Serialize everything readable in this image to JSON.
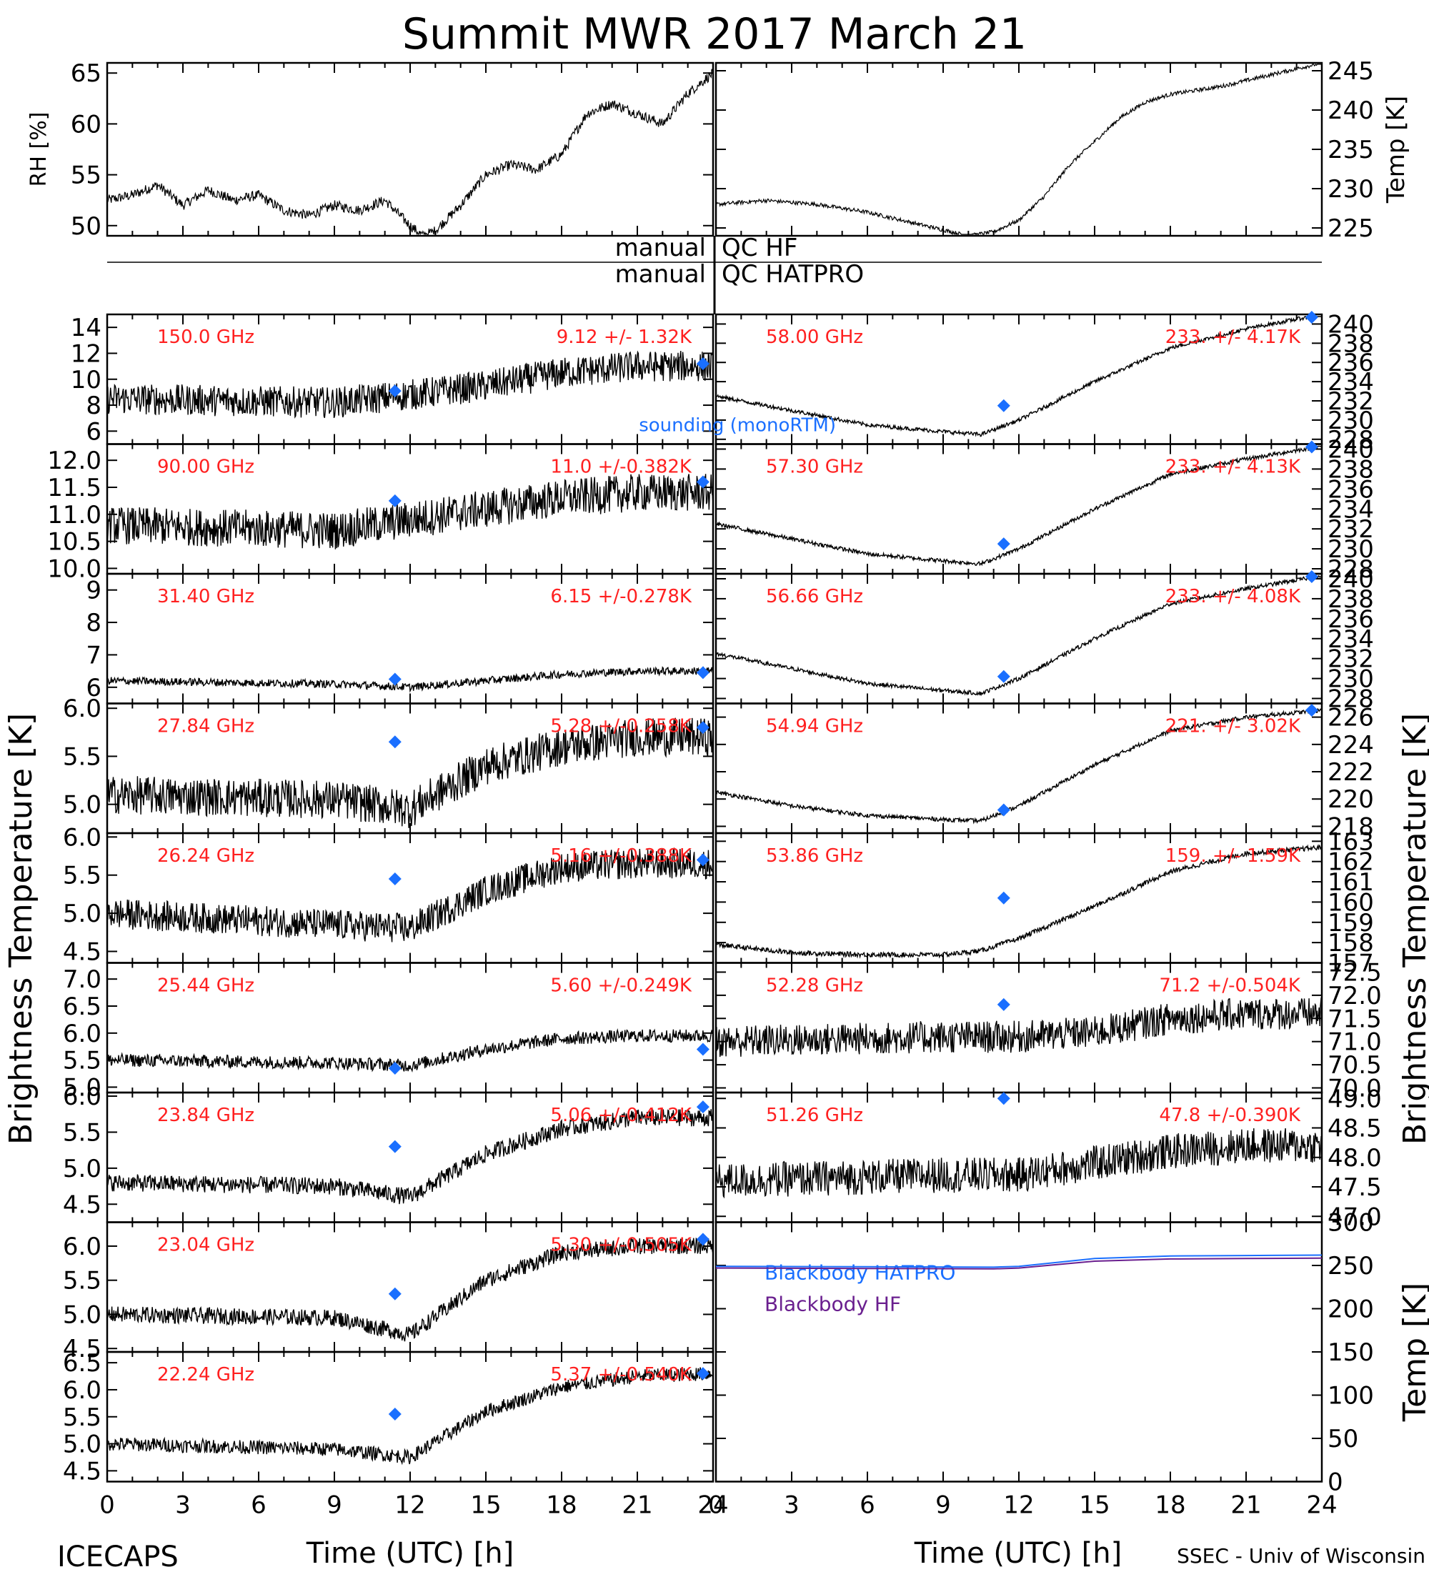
{
  "title": "Summit MWR 2017 March 21",
  "footer": {
    "left": "ICECAPS",
    "right": "SSEC - Univ of Wisconsin"
  },
  "colors": {
    "data": "#000000",
    "label": "#ff2020",
    "sounding": "#1a6fff",
    "blackbody_hatpro": "#1a6fff",
    "blackbody_hf": "#6a1f8f"
  },
  "labels": {
    "left_y": "Brightness Temperature [K]",
    "right_y": "Brightness Temperature [K]",
    "rh_y": "RH [%]",
    "temp_y": "Temp [K]",
    "bb_temp_y": "Temp [K]",
    "x": "Time (UTC) [h]",
    "qc_left_1": "manual",
    "qc_right_1": "QC HF",
    "qc_left_2": "manual",
    "qc_right_2": "QC HATPRO",
    "sounding_legend": "sounding (monoRTM)"
  },
  "chart_data": {
    "type": "line",
    "x_ticks": [
      "0",
      "3",
      "6",
      "9",
      "12",
      "15",
      "18",
      "21",
      "24"
    ],
    "xlim": [
      0,
      24
    ],
    "met": {
      "rh": {
        "ylabel": "RH [%]",
        "ylim": [
          49,
          66
        ],
        "ticks": [
          "50",
          "55",
          "60",
          "65"
        ],
        "points": [
          [
            0,
            52.5
          ],
          [
            1,
            53
          ],
          [
            2,
            54
          ],
          [
            3,
            52
          ],
          [
            4,
            53.5
          ],
          [
            5,
            52.5
          ],
          [
            6,
            53
          ],
          [
            7,
            51.5
          ],
          [
            8,
            51
          ],
          [
            9,
            52
          ],
          [
            10,
            51.5
          ],
          [
            11,
            52.5
          ],
          [
            12,
            50
          ],
          [
            12.5,
            49
          ],
          [
            13,
            49.5
          ],
          [
            14,
            52
          ],
          [
            15,
            55
          ],
          [
            16,
            56
          ],
          [
            17,
            55.5
          ],
          [
            18,
            57
          ],
          [
            19,
            61
          ],
          [
            20,
            62
          ],
          [
            21,
            61
          ],
          [
            22,
            60
          ],
          [
            23,
            63
          ],
          [
            24,
            65
          ]
        ]
      },
      "temp": {
        "ylabel": "Temp [K]",
        "ylim": [
          224,
          246
        ],
        "ticks": [
          "225",
          "230",
          "235",
          "240",
          "245"
        ],
        "points": [
          [
            0,
            228
          ],
          [
            2,
            228.5
          ],
          [
            4,
            228
          ],
          [
            6,
            227
          ],
          [
            8,
            225.5
          ],
          [
            10,
            224
          ],
          [
            11,
            224.5
          ],
          [
            12,
            226
          ],
          [
            13,
            229
          ],
          [
            14,
            233
          ],
          [
            15,
            236
          ],
          [
            16,
            239
          ],
          [
            17,
            241
          ],
          [
            18,
            242
          ],
          [
            20,
            243
          ],
          [
            22,
            244.5
          ],
          [
            24,
            246
          ]
        ]
      }
    },
    "left_panels": [
      {
        "freq": "150.0 GHz",
        "stat": "9.12 +/- 1.32K",
        "ylim": [
          5,
          15
        ],
        "ticks": [
          "6",
          "8",
          "10",
          "12",
          "14"
        ],
        "noise": 1.2,
        "sounding": [
          [
            11.4,
            9.1
          ],
          [
            23.6,
            11.2
          ]
        ],
        "trend": [
          [
            0,
            8.5
          ],
          [
            9,
            8.2
          ],
          [
            12,
            8.8
          ],
          [
            15,
            9.5
          ],
          [
            18,
            10.5
          ],
          [
            21,
            11
          ],
          [
            24,
            11
          ]
        ]
      },
      {
        "freq": "90.00 GHz",
        "stat": "11.0 +/-0.382K",
        "ylim": [
          9.9,
          12.3
        ],
        "ticks": [
          "10.0",
          "10.5",
          "11.0",
          "11.5",
          "12.0"
        ],
        "noise": 0.35,
        "sounding": [
          [
            11.4,
            11.25
          ],
          [
            23.6,
            11.6
          ]
        ],
        "trend": [
          [
            0,
            10.8
          ],
          [
            9,
            10.7
          ],
          [
            12,
            10.9
          ],
          [
            15,
            11.1
          ],
          [
            18,
            11.3
          ],
          [
            21,
            11.4
          ],
          [
            24,
            11.4
          ]
        ]
      },
      {
        "freq": "31.40 GHz",
        "stat": "6.15 +/-0.278K",
        "ylim": [
          5.5,
          9.5
        ],
        "ticks": [
          "6",
          "7",
          "8",
          "9"
        ],
        "noise": 0.12,
        "sounding": [
          [
            11.4,
            6.25
          ],
          [
            23.6,
            6.45
          ]
        ],
        "trend": [
          [
            0,
            6.2
          ],
          [
            9,
            6.1
          ],
          [
            12,
            6.0
          ],
          [
            15,
            6.2
          ],
          [
            18,
            6.4
          ],
          [
            21,
            6.5
          ],
          [
            24,
            6.5
          ]
        ]
      },
      {
        "freq": "27.84 GHz",
        "stat": "5.28 +/-0.258K",
        "ylim": [
          4.7,
          6.05
        ],
        "ticks": [
          "5.0",
          "5.5",
          "6.0"
        ],
        "noise": 0.2,
        "sounding": [
          [
            11.4,
            5.65
          ],
          [
            23.6,
            5.8
          ]
        ],
        "trend": [
          [
            0,
            5.1
          ],
          [
            9,
            5.05
          ],
          [
            12,
            4.95
          ],
          [
            15,
            5.4
          ],
          [
            18,
            5.6
          ],
          [
            21,
            5.7
          ],
          [
            24,
            5.7
          ]
        ]
      },
      {
        "freq": "26.24 GHz",
        "stat": "5.16 +/-0.388K",
        "ylim": [
          4.35,
          6.05
        ],
        "ticks": [
          "4.5",
          "5.0",
          "5.5",
          "6.0"
        ],
        "noise": 0.2,
        "sounding": [
          [
            11.4,
            5.45
          ],
          [
            23.6,
            5.7
          ]
        ],
        "trend": [
          [
            0,
            5.0
          ],
          [
            9,
            4.85
          ],
          [
            12,
            4.8
          ],
          [
            15,
            5.3
          ],
          [
            18,
            5.6
          ],
          [
            21,
            5.65
          ],
          [
            24,
            5.65
          ]
        ]
      },
      {
        "freq": "25.44 GHz",
        "stat": "5.60 +/-0.249K",
        "ylim": [
          4.9,
          7.3
        ],
        "ticks": [
          "5.0",
          "5.5",
          "6.0",
          "6.5",
          "7.0"
        ],
        "noise": 0.12,
        "sounding": [
          [
            11.4,
            5.35
          ],
          [
            23.6,
            5.7
          ]
        ],
        "trend": [
          [
            0,
            5.5
          ],
          [
            9,
            5.45
          ],
          [
            12,
            5.4
          ],
          [
            15,
            5.7
          ],
          [
            18,
            5.9
          ],
          [
            21,
            5.95
          ],
          [
            24,
            5.95
          ]
        ]
      },
      {
        "freq": "23.84 GHz",
        "stat": "5.06 +/-0.412K",
        "ylim": [
          4.25,
          6.05
        ],
        "ticks": [
          "4.5",
          "5.0",
          "5.5",
          "6.0"
        ],
        "noise": 0.12,
        "sounding": [
          [
            11.4,
            5.3
          ],
          [
            23.6,
            5.85
          ]
        ],
        "trend": [
          [
            0,
            4.8
          ],
          [
            9,
            4.75
          ],
          [
            12,
            4.6
          ],
          [
            15,
            5.2
          ],
          [
            18,
            5.55
          ],
          [
            21,
            5.7
          ],
          [
            24,
            5.7
          ]
        ]
      },
      {
        "freq": "23.04 GHz",
        "stat": "5.30 +/-0.505K",
        "ylim": [
          4.45,
          6.35
        ],
        "ticks": [
          "4.5",
          "5.0",
          "5.5",
          "6.0"
        ],
        "noise": 0.12,
        "sounding": [
          [
            11.4,
            5.3
          ],
          [
            23.6,
            6.1
          ]
        ],
        "trend": [
          [
            0,
            5.0
          ],
          [
            9,
            4.95
          ],
          [
            12,
            4.7
          ],
          [
            15,
            5.5
          ],
          [
            18,
            5.9
          ],
          [
            21,
            6.0
          ],
          [
            24,
            6.0
          ]
        ]
      },
      {
        "freq": "22.24 GHz",
        "stat": "5.37 +/-0.540K",
        "ylim": [
          4.3,
          6.7
        ],
        "ticks": [
          "4.5",
          "5.0",
          "5.5",
          "6.0",
          "6.5"
        ],
        "noise": 0.13,
        "sounding": [
          [
            11.4,
            5.55
          ],
          [
            23.6,
            6.3
          ]
        ],
        "trend": [
          [
            0,
            5.0
          ],
          [
            9,
            4.9
          ],
          [
            12,
            4.75
          ],
          [
            15,
            5.6
          ],
          [
            18,
            6.05
          ],
          [
            21,
            6.25
          ],
          [
            24,
            6.3
          ]
        ]
      }
    ],
    "right_panels": [
      {
        "freq": "58.00 GHz",
        "stat": "233. +/- 4.17K",
        "ylim": [
          227.5,
          241
        ],
        "ticks": [
          "228",
          "230",
          "232",
          "234",
          "236",
          "238",
          "240"
        ],
        "noise": 0.2,
        "sounding": [
          [
            11.4,
            231.5
          ],
          [
            23.6,
            240.8
          ]
        ],
        "trend": [
          [
            0,
            232.5
          ],
          [
            3,
            231
          ],
          [
            6,
            229.5
          ],
          [
            9,
            228.8
          ],
          [
            10.5,
            228.5
          ],
          [
            12,
            230
          ],
          [
            15,
            234
          ],
          [
            18,
            237.5
          ],
          [
            21,
            239.5
          ],
          [
            24,
            241
          ]
        ]
      },
      {
        "freq": "57.30 GHz",
        "stat": "233. +/- 4.13K",
        "ylim": [
          227.5,
          240.5
        ],
        "ticks": [
          "228",
          "230",
          "232",
          "234",
          "236",
          "238",
          "240"
        ],
        "noise": 0.2,
        "sounding": [
          [
            11.4,
            230.5
          ],
          [
            23.6,
            240.3
          ]
        ],
        "trend": [
          [
            0,
            232.5
          ],
          [
            3,
            231
          ],
          [
            6,
            229.5
          ],
          [
            9,
            228.8
          ],
          [
            10.5,
            228.5
          ],
          [
            12,
            230
          ],
          [
            15,
            234
          ],
          [
            18,
            237.5
          ],
          [
            21,
            239
          ],
          [
            24,
            240.3
          ]
        ]
      },
      {
        "freq": "56.66 GHz",
        "stat": "233. +/- 4.08K",
        "ylim": [
          227.5,
          240.5
        ],
        "ticks": [
          "228",
          "230",
          "232",
          "234",
          "236",
          "238",
          "240"
        ],
        "noise": 0.2,
        "sounding": [
          [
            11.4,
            230.2
          ],
          [
            23.6,
            240.3
          ]
        ],
        "trend": [
          [
            0,
            232.5
          ],
          [
            3,
            231
          ],
          [
            6,
            229.5
          ],
          [
            9,
            228.8
          ],
          [
            10.5,
            228.5
          ],
          [
            12,
            230
          ],
          [
            15,
            234
          ],
          [
            18,
            237.5
          ],
          [
            21,
            239
          ],
          [
            24,
            240.3
          ]
        ]
      },
      {
        "freq": "54.94 GHz",
        "stat": "221. +/- 3.02K",
        "ylim": [
          217.5,
          227
        ],
        "ticks": [
          "218",
          "220",
          "222",
          "224",
          "226"
        ],
        "noise": 0.15,
        "sounding": [
          [
            11.4,
            219.2
          ],
          [
            23.6,
            226.5
          ]
        ],
        "trend": [
          [
            0,
            220.5
          ],
          [
            3,
            219.5
          ],
          [
            6,
            218.8
          ],
          [
            9,
            218.5
          ],
          [
            10.5,
            218.4
          ],
          [
            12,
            219.5
          ],
          [
            15,
            222.5
          ],
          [
            18,
            225
          ],
          [
            21,
            226
          ],
          [
            24,
            226.5
          ]
        ]
      },
      {
        "freq": "53.86 GHz",
        "stat": "159. +/- 1.59K",
        "ylim": [
          157,
          163.4
        ],
        "ticks": [
          "157",
          "158",
          "159",
          "160",
          "161",
          "162",
          "163"
        ],
        "noise": 0.12,
        "sounding": [
          [
            11.4,
            160.2
          ]
        ],
        "trend": [
          [
            0,
            157.9
          ],
          [
            3,
            157.5
          ],
          [
            6,
            157.4
          ],
          [
            9,
            157.4
          ],
          [
            10.5,
            157.6
          ],
          [
            12,
            158.2
          ],
          [
            15,
            159.8
          ],
          [
            18,
            161.5
          ],
          [
            21,
            162.4
          ],
          [
            24,
            162.7
          ]
        ]
      },
      {
        "freq": "52.28 GHz",
        "stat": "71.2 +/-0.504K",
        "ylim": [
          69.9,
          72.7
        ],
        "ticks": [
          "70.0",
          "70.5",
          "71.0",
          "71.5",
          "72.0",
          "72.5"
        ],
        "noise": 0.35,
        "sounding": [
          [
            11.4,
            71.8
          ]
        ],
        "trend": [
          [
            0,
            71.0
          ],
          [
            9,
            71.1
          ],
          [
            12,
            71.1
          ],
          [
            15,
            71.2
          ],
          [
            18,
            71.5
          ],
          [
            21,
            71.6
          ],
          [
            24,
            71.6
          ]
        ]
      },
      {
        "freq": "51.26 GHz",
        "stat": "47.8 +/-0.390K",
        "ylim": [
          46.9,
          49.1
        ],
        "ticks": [
          "47.0",
          "47.5",
          "48.0",
          "48.5",
          "49.0"
        ],
        "noise": 0.3,
        "sounding": [
          [
            11.4,
            49.0
          ]
        ],
        "trend": [
          [
            0,
            47.6
          ],
          [
            9,
            47.7
          ],
          [
            12,
            47.7
          ],
          [
            15,
            47.9
          ],
          [
            18,
            48.1
          ],
          [
            21,
            48.2
          ],
          [
            24,
            48.2
          ]
        ]
      }
    ],
    "blackbody": {
      "ylabel": "Temp [K]",
      "ylim": [
        0,
        300
      ],
      "ticks": [
        "0",
        "50",
        "100",
        "150",
        "200",
        "250",
        "300"
      ],
      "series": [
        {
          "name": "Blackbody HATPRO",
          "points": [
            [
              0,
              249
            ],
            [
              6,
              248.5
            ],
            [
              11,
              248
            ],
            [
              12,
              249
            ],
            [
              15,
              258
            ],
            [
              18,
              261
            ],
            [
              21,
              261.5
            ],
            [
              24,
              262
            ]
          ]
        },
        {
          "name": "Blackbody HF",
          "points": [
            [
              0,
              247
            ],
            [
              6,
              246.5
            ],
            [
              11,
              246
            ],
            [
              12,
              247
            ],
            [
              15,
              255
            ],
            [
              18,
              257.5
            ],
            [
              21,
              258
            ],
            [
              24,
              258.5
            ]
          ]
        }
      ]
    }
  }
}
